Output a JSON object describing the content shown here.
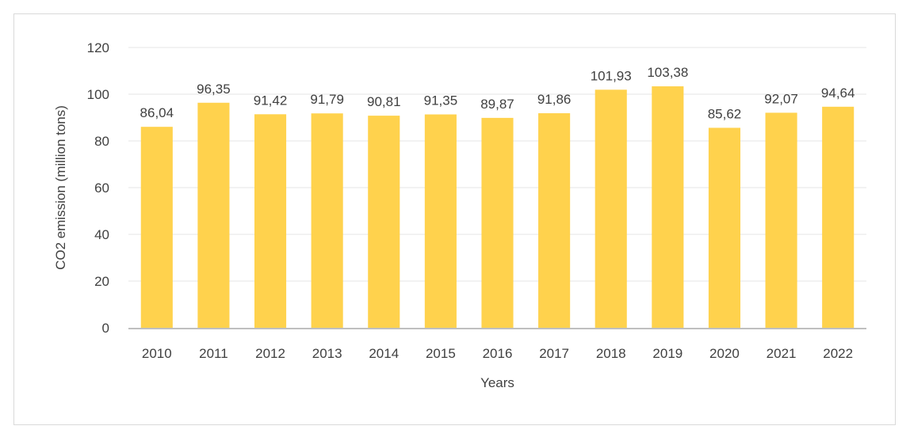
{
  "chart_data": {
    "type": "bar",
    "title": "",
    "xlabel": "Years",
    "ylabel": "CO2 emission (million tons)",
    "ylim": [
      0,
      120
    ],
    "yticks": [
      0,
      20,
      40,
      60,
      80,
      100,
      120
    ],
    "grid": true,
    "legend": "none",
    "bar_color": "#FFD24D",
    "categories": [
      "2010",
      "2011",
      "2012",
      "2013",
      "2014",
      "2015",
      "2016",
      "2017",
      "2018",
      "2019",
      "2020",
      "2021",
      "2022"
    ],
    "values": [
      86.04,
      96.35,
      91.42,
      91.79,
      90.81,
      91.35,
      89.87,
      91.86,
      101.93,
      103.38,
      85.62,
      92.07,
      94.64
    ],
    "value_labels": [
      "86,04",
      "96,35",
      "91,42",
      "91,79",
      "90,81",
      "91,35",
      "89,87",
      "91,86",
      "101,93",
      "103,38",
      "85,62",
      "92,07",
      "94,64"
    ]
  }
}
